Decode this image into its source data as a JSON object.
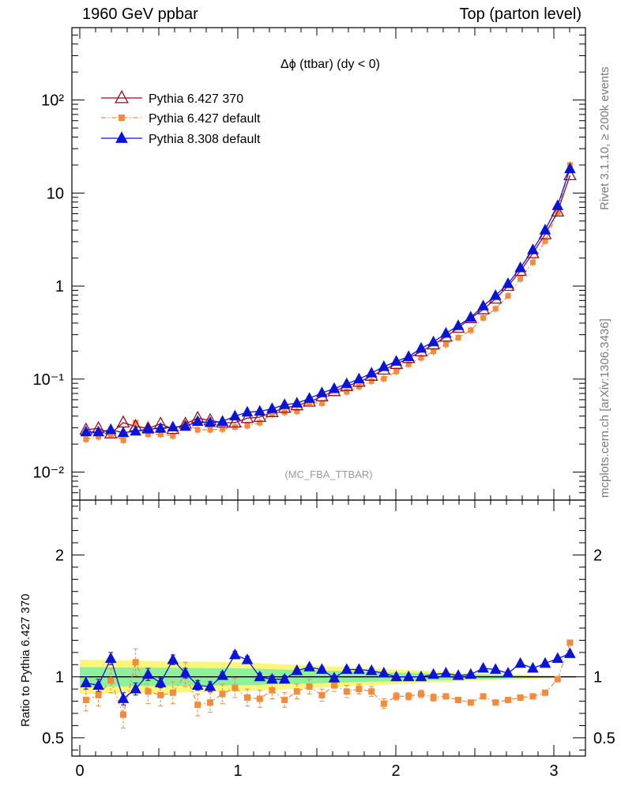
{
  "header": {
    "left": "1960 GeV ppbar",
    "right": "Top (parton level)"
  },
  "side_text": {
    "rivet": "Rivet 3.1.10, ≥ 200k events",
    "mcplots": "mcplots.cern.ch [arXiv:1306.3436]"
  },
  "chart_data": {
    "type": "line",
    "title": "Δϕ (ttbar) (dy < 0)",
    "watermark": "(MC_FBA_TTBAR)",
    "x": [
      0.039,
      0.118,
      0.196,
      0.275,
      0.353,
      0.432,
      0.511,
      0.589,
      0.668,
      0.746,
      0.825,
      0.903,
      0.982,
      1.06,
      1.139,
      1.217,
      1.296,
      1.374,
      1.453,
      1.532,
      1.61,
      1.689,
      1.767,
      1.846,
      1.924,
      2.003,
      2.081,
      2.16,
      2.238,
      2.317,
      2.395,
      2.474,
      2.553,
      2.631,
      2.71,
      2.788,
      2.867,
      2.945,
      3.024,
      3.102
    ],
    "xlim": [
      -0.05,
      3.2
    ],
    "xticks": [
      "0",
      "1",
      "2",
      "3"
    ],
    "main_panel": {
      "ylabel": "",
      "yscale": "log",
      "ylim": [
        0.005,
        600
      ],
      "ytick_labels": [
        "10⁻²",
        "10⁻¹",
        "1",
        "10",
        "10²"
      ],
      "series": [
        {
          "name": "Pythia 6.427 370",
          "color": "#9b0a1e",
          "marker": "open-triangle",
          "line": "solid",
          "values": [
            0.0285,
            0.0295,
            0.026,
            0.034,
            0.031,
            0.0295,
            0.033,
            0.029,
            0.033,
            0.038,
            0.036,
            0.034,
            0.034,
            0.038,
            0.039,
            0.044,
            0.049,
            0.052,
            0.057,
            0.065,
            0.074,
            0.084,
            0.093,
            0.108,
            0.126,
            0.145,
            0.168,
            0.198,
            0.235,
            0.285,
            0.355,
            0.45,
            0.56,
            0.73,
            1.0,
            1.45,
            2.25,
            3.6,
            6.3,
            15.5
          ]
        },
        {
          "name": "Pythia 6.427 default",
          "color": "#f58b3a",
          "marker": "filled-square",
          "line": "dashdot",
          "values": [
            0.0225,
            0.024,
            0.0255,
            0.022,
            0.034,
            0.0255,
            0.0255,
            0.0245,
            0.0335,
            0.0285,
            0.0285,
            0.029,
            0.0305,
            0.0315,
            0.034,
            0.042,
            0.044,
            0.045,
            0.056,
            0.055,
            0.075,
            0.073,
            0.083,
            0.095,
            0.101,
            0.121,
            0.144,
            0.169,
            0.198,
            0.236,
            0.279,
            0.335,
            0.455,
            0.57,
            0.785,
            1.2,
            1.8,
            3.05,
            6.2,
            20.0
          ]
        },
        {
          "name": "Pythia 8.308 default",
          "color": "#0a14d8",
          "marker": "filled-triangle",
          "line": "solid",
          "values": [
            0.027,
            0.027,
            0.0285,
            0.0265,
            0.0275,
            0.029,
            0.0295,
            0.0305,
            0.031,
            0.035,
            0.034,
            0.035,
            0.04,
            0.044,
            0.045,
            0.048,
            0.053,
            0.055,
            0.062,
            0.071,
            0.079,
            0.089,
            0.1,
            0.116,
            0.136,
            0.155,
            0.174,
            0.214,
            0.251,
            0.31,
            0.375,
            0.46,
            0.61,
            0.79,
            1.06,
            1.57,
            2.45,
            4.0,
            7.3,
            18.2
          ]
        }
      ]
    },
    "ratio_panel": {
      "ylabel": "Ratio to Pythia 6.427 370",
      "ylim": [
        0.35,
        2.45
      ],
      "yticks": [
        0.5,
        1,
        2
      ],
      "ytick_labels": [
        "0.5",
        "1",
        "2"
      ],
      "reference_color": "#000000",
      "band_colors": {
        "outer": "#fbf57a",
        "inner": "#8ef09a"
      },
      "band_halfwidth": {
        "x": [
          0.0,
          1.0,
          2.0,
          2.5,
          3.0,
          3.14
        ],
        "outer": [
          0.14,
          0.12,
          0.06,
          0.03,
          0.01,
          0.005
        ],
        "inner": [
          0.08,
          0.07,
          0.035,
          0.02,
          0.006,
          0.003
        ]
      },
      "series": [
        {
          "name": "Pythia 6.427 default",
          "color": "#f58b3a",
          "values": [
            0.81,
            0.85,
            0.97,
            0.69,
            1.12,
            0.88,
            0.85,
            0.87,
            1.02,
            0.77,
            0.79,
            0.86,
            0.91,
            0.83,
            0.82,
            0.89,
            0.81,
            0.88,
            0.92,
            0.85,
            0.93,
            0.88,
            0.9,
            0.88,
            0.78,
            0.84,
            0.84,
            0.86,
            0.83,
            0.84,
            0.81,
            0.79,
            0.84,
            0.79,
            0.81,
            0.83,
            0.84,
            0.87,
            0.98,
            1.28
          ],
          "errors": [
            0.09,
            0.09,
            0.1,
            0.11,
            0.11,
            0.1,
            0.09,
            0.09,
            0.1,
            0.09,
            0.08,
            0.08,
            0.08,
            0.07,
            0.07,
            0.07,
            0.06,
            0.06,
            0.06,
            0.05,
            0.05,
            0.05,
            0.04,
            0.04,
            0.04,
            0.03,
            0.03,
            0.03,
            0.03,
            0.02,
            0.02,
            0.02,
            0.02,
            0.02,
            0.01,
            0.01,
            0.01,
            0.01,
            0.01,
            0.01
          ]
        },
        {
          "name": "Pythia 8.308 default",
          "color": "#0a14d8",
          "values": [
            0.95,
            0.93,
            1.15,
            0.82,
            0.9,
            1.02,
            0.95,
            1.14,
            1.03,
            0.93,
            0.92,
            1.01,
            1.18,
            1.14,
            1.0,
            0.98,
            0.98,
            1.05,
            1.08,
            1.06,
            0.99,
            1.06,
            1.06,
            1.05,
            1.03,
            1.0,
            1.0,
            1.0,
            1.02,
            1.03,
            1.01,
            1.02,
            1.07,
            1.06,
            1.03,
            1.11,
            1.07,
            1.11,
            1.15,
            1.19
          ],
          "errors": [
            0.05,
            0.05,
            0.05,
            0.05,
            0.05,
            0.05,
            0.04,
            0.04,
            0.04,
            0.04,
            0.04,
            0.03,
            0.03,
            0.03,
            0.03,
            0.03,
            0.03,
            0.02,
            0.02,
            0.02,
            0.02,
            0.02,
            0.02,
            0.02,
            0.01,
            0.01,
            0.01,
            0.01,
            0.01,
            0.01,
            0.01,
            0.01,
            0.01,
            0.01,
            0.01,
            0.01,
            0.01,
            0.01,
            0.01,
            0.01
          ]
        }
      ]
    }
  }
}
